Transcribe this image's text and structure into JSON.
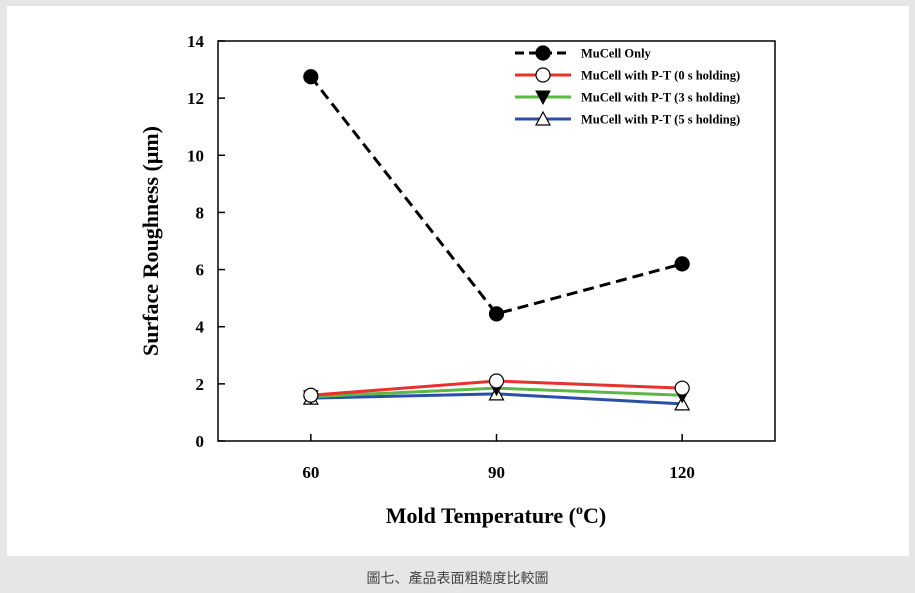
{
  "chart_data": {
    "type": "line",
    "title": "",
    "xlabel": "Mold Temperature (",
    "xlabel_sup": "o",
    "xlabel_end": "C)",
    "ylabel": "Surface Roughness (μm)",
    "x": [
      60,
      90,
      120
    ],
    "x_tick_labels": [
      "60",
      "90",
      "120"
    ],
    "xlim": [
      45,
      135
    ],
    "ylim": [
      0,
      14
    ],
    "y_ticks": [
      0,
      2,
      4,
      6,
      8,
      10,
      12,
      14
    ],
    "grid": false,
    "legend_position": "top-right",
    "series": [
      {
        "name": "MuCell Only",
        "values": [
          12.75,
          4.45,
          6.2
        ],
        "color": "#000000",
        "dash": true,
        "marker": "filled-circle"
      },
      {
        "name": "MuCell with P-T (0 s holding)",
        "values": [
          1.6,
          2.1,
          1.85
        ],
        "color": "#e8322d",
        "dash": false,
        "marker": "open-circle"
      },
      {
        "name": "MuCell with P-T (3 s holding)",
        "values": [
          1.55,
          1.85,
          1.6
        ],
        "color": "#5ab847",
        "dash": false,
        "marker": "filled-triangle-down"
      },
      {
        "name": "MuCell with P-T (5 s holding)",
        "values": [
          1.5,
          1.65,
          1.3
        ],
        "color": "#2b4fa8",
        "dash": false,
        "marker": "open-triangle-up"
      }
    ]
  },
  "caption": "圖七、產品表面粗糙度比較圖"
}
